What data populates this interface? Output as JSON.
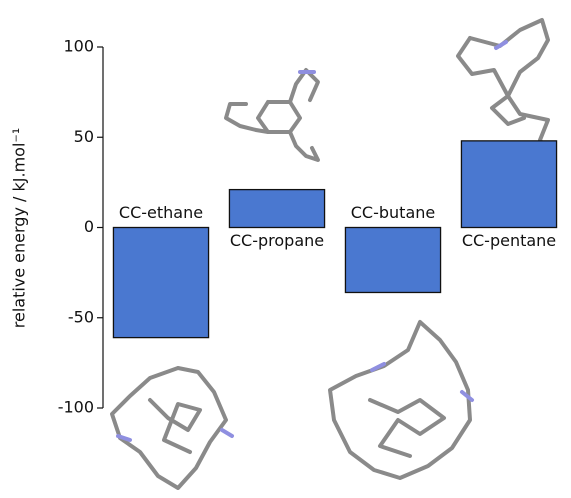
{
  "chart_data": {
    "type": "bar",
    "y_label": "relative energy / kJ.mol⁻¹",
    "categories": [
      "CC-ethane",
      "CC-propane",
      "CC-butane",
      "CC-pentane"
    ],
    "values": [
      -61,
      21,
      -36,
      48
    ],
    "color": "#4a78d0",
    "ylim": [
      -100,
      100
    ],
    "yticks": [
      -100,
      -50,
      0,
      50,
      100
    ]
  }
}
